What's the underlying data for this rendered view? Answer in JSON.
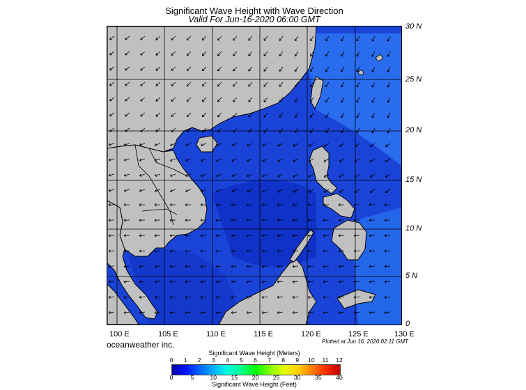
{
  "title": "Significant Wave Height with Wave Direction",
  "subtitle": "Valid For Jun-16-2020 06:00 GMT",
  "lat_labels": [
    "30 N",
    "25 N",
    "20 N",
    "15 N",
    "10 N",
    "5 N",
    "0"
  ],
  "lon_labels": [
    "100 E",
    "105 E",
    "110 E",
    "115 E",
    "120 E",
    "125 E",
    "130 E"
  ],
  "company": "oceanweather inc.",
  "plotted": "Plotted at Jun 16, 2020 02:11 GMT",
  "colorbar": {
    "meters_title": "Significant Wave Height (Meters)",
    "feet_title": "Significant Wave Height (Feet)",
    "meters_ticks": [
      "0",
      "1",
      "2",
      "3",
      "4",
      "5",
      "6",
      "7",
      "8",
      "9",
      "10",
      "11",
      "12"
    ],
    "feet_ticks": [
      "0",
      "5",
      "10",
      "15",
      "20",
      "25",
      "30",
      "35",
      "40"
    ]
  },
  "colors": {
    "land": "#c0c0c0",
    "sea_dark": "#0f2ed0",
    "sea_mid": "#1a50e6",
    "sea_light": "#2a78f0",
    "grid": "#000000"
  }
}
